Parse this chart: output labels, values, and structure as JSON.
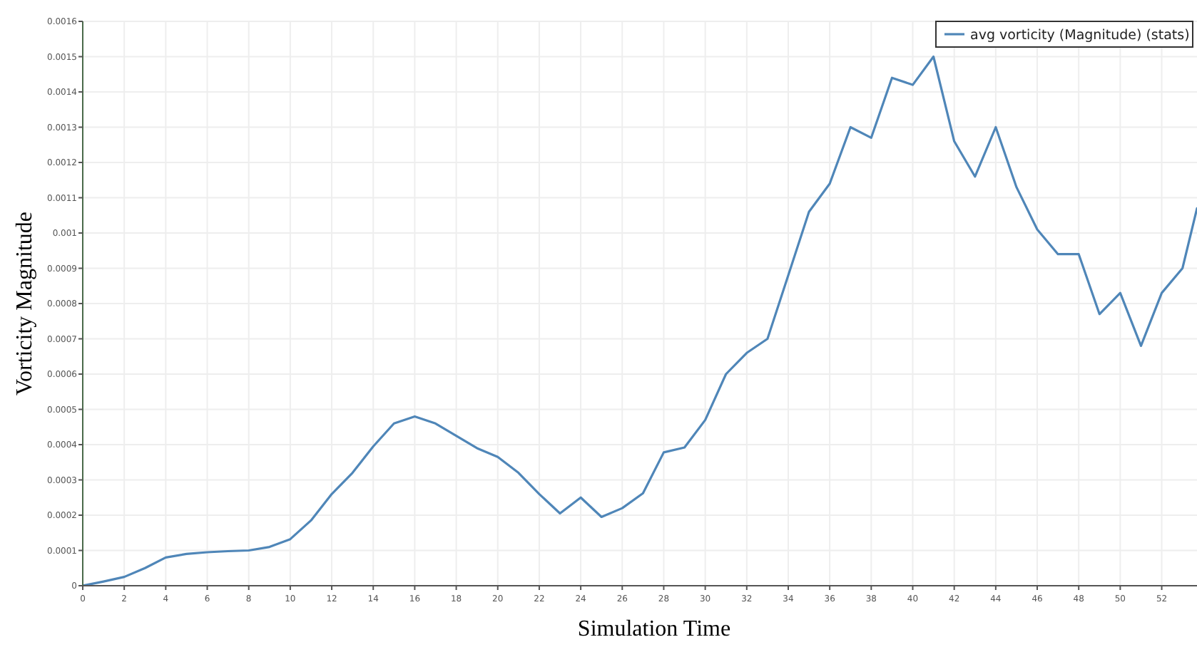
{
  "chart_data": {
    "type": "line",
    "xlabel": "Simulation Time",
    "ylabel": "Vorticity Magnitude",
    "x": [
      0,
      1,
      2,
      3,
      4,
      5,
      6,
      7,
      8,
      9,
      10,
      11,
      12,
      13,
      14,
      15,
      16,
      17,
      18,
      19,
      20,
      21,
      22,
      23,
      24,
      25,
      26,
      27,
      28,
      29,
      30,
      31,
      32,
      33,
      34,
      35,
      36,
      37,
      38,
      39,
      40,
      41,
      42,
      43,
      44,
      45,
      46,
      47,
      48,
      49,
      50,
      51,
      52,
      53,
      53.7
    ],
    "series": [
      {
        "name": "avg vorticity (Magnitude) (stats)",
        "color": "#4f86b8",
        "values": [
          0,
          1.2e-05,
          2.5e-05,
          5e-05,
          8e-05,
          9e-05,
          9.5e-05,
          9.8e-05,
          0.0001,
          0.00011,
          0.000132,
          0.000185,
          0.00026,
          0.00032,
          0.000395,
          0.00046,
          0.00048,
          0.00046,
          0.000425,
          0.00039,
          0.000365,
          0.00032,
          0.00026,
          0.000205,
          0.00025,
          0.000195,
          0.00022,
          0.000262,
          0.000378,
          0.000392,
          0.00047,
          0.0006,
          0.00066,
          0.0007,
          0.00088,
          0.00106,
          0.00114,
          0.0013,
          0.00127,
          0.00144,
          0.00142,
          0.0015,
          0.00126,
          0.00116,
          0.0013,
          0.00113,
          0.00101,
          0.00094,
          0.00094,
          0.00077,
          0.00083,
          0.00068,
          0.00083,
          0.0009,
          0.00107
        ]
      }
    ],
    "xlim": [
      0,
      53.7
    ],
    "xticks": [
      0,
      2,
      4,
      6,
      8,
      10,
      12,
      14,
      16,
      18,
      20,
      22,
      24,
      26,
      28,
      30,
      32,
      34,
      36,
      38,
      40,
      42,
      44,
      46,
      48,
      50,
      52
    ],
    "ylim": [
      0,
      0.0016
    ],
    "yticks": [
      0,
      0.0001,
      0.0002,
      0.0003,
      0.0004,
      0.0005,
      0.0006,
      0.0007,
      0.0008,
      0.0009,
      0.001,
      0.0011,
      0.0012,
      0.0013,
      0.0014,
      0.0015,
      0.0016
    ],
    "grid": true,
    "legend": "top right",
    "marker": "none",
    "line_style": "solid"
  }
}
